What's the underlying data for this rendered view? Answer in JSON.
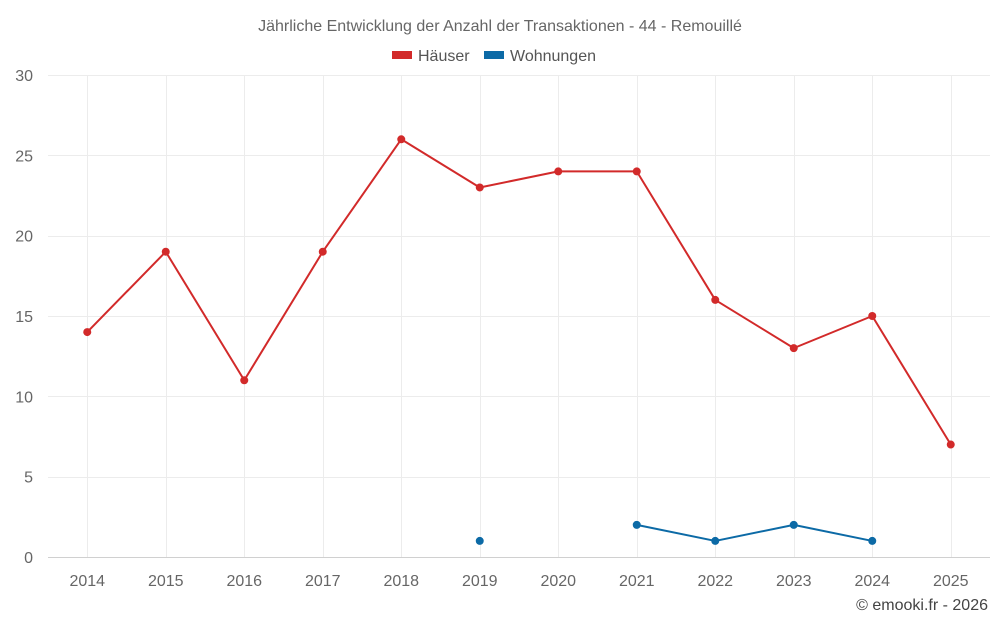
{
  "chart_data": {
    "type": "line",
    "title": "Jährliche Entwicklung der Anzahl der Transaktionen - 44 - Remouillé",
    "categories": [
      "2014",
      "2015",
      "2016",
      "2017",
      "2018",
      "2019",
      "2020",
      "2021",
      "2022",
      "2023",
      "2024",
      "2025"
    ],
    "ylim": [
      0,
      30
    ],
    "yticks": [
      "0",
      "5",
      "10",
      "15",
      "20",
      "25",
      "30"
    ],
    "grid": true,
    "legend_position": "top-center",
    "series": [
      {
        "name": "Häuser",
        "color": "#d22a2a",
        "values": [
          14,
          19,
          11,
          19,
          26,
          23,
          24,
          24,
          16,
          13,
          15,
          7
        ]
      },
      {
        "name": "Wohnungen",
        "color": "#0c6aa6",
        "values": [
          null,
          null,
          null,
          null,
          null,
          1,
          null,
          2,
          1,
          2,
          1,
          null
        ]
      }
    ]
  },
  "credit": "© emooki.fr - 2026"
}
